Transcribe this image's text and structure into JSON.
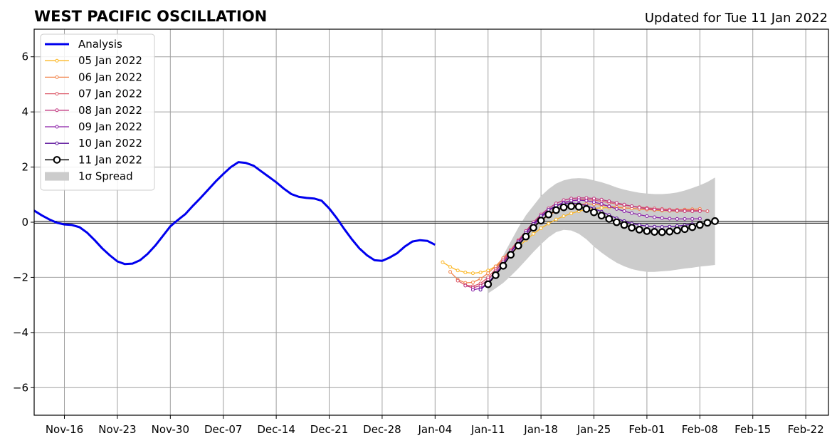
{
  "title": "WEST PACIFIC OSCILLATION",
  "updated": "Updated for Tue 11 Jan 2022",
  "chart_data": {
    "type": "line",
    "x_start_date": "2021-11-12",
    "xlim_days": [
      0,
      105
    ],
    "ylim": [
      -7,
      7
    ],
    "grid": true,
    "legend_placement": "top-left",
    "y_ticks": [
      -6,
      -4,
      -2,
      0,
      2,
      4,
      6
    ],
    "y_tick_labels": [
      "−6",
      "−4",
      "−2",
      "0",
      "2",
      "4",
      "6"
    ],
    "x_ticks": [
      {
        "label": "Nov-16",
        "day": 4
      },
      {
        "label": "Nov-23",
        "day": 11
      },
      {
        "label": "Nov-30",
        "day": 18
      },
      {
        "label": "Dec-07",
        "day": 25
      },
      {
        "label": "Dec-14",
        "day": 32
      },
      {
        "label": "Dec-21",
        "day": 39
      },
      {
        "label": "Dec-28",
        "day": 46
      },
      {
        "label": "Jan-04",
        "day": 53
      },
      {
        "label": "Jan-11",
        "day": 60
      },
      {
        "label": "Jan-18",
        "day": 67
      },
      {
        "label": "Jan-25",
        "day": 74
      },
      {
        "label": "Feb-01",
        "day": 81
      },
      {
        "label": "Feb-08",
        "day": 88
      },
      {
        "label": "Feb-15",
        "day": 95
      },
      {
        "label": "Feb-22",
        "day": 102
      }
    ],
    "analysis": {
      "name": "Analysis",
      "color": "#0000ee",
      "start_day": 0,
      "values": [
        0.42,
        0.25,
        0.1,
        -0.02,
        -0.08,
        -0.1,
        -0.18,
        -0.38,
        -0.65,
        -0.95,
        -1.2,
        -1.42,
        -1.52,
        -1.5,
        -1.38,
        -1.15,
        -0.85,
        -0.5,
        -0.15,
        0.08,
        0.3,
        0.6,
        0.88,
        1.18,
        1.48,
        1.75,
        2.0,
        2.18,
        2.15,
        2.05,
        1.85,
        1.65,
        1.45,
        1.22,
        1.02,
        0.92,
        0.88,
        0.86,
        0.78,
        0.5,
        0.15,
        -0.25,
        -0.62,
        -0.95,
        -1.2,
        -1.38,
        -1.4,
        -1.28,
        -1.12,
        -0.88,
        -0.7,
        -0.65,
        -0.68,
        -0.82
      ]
    },
    "forecasts": [
      {
        "name": "05 Jan 2022",
        "color": "#fcb724",
        "start_day": 54,
        "values": [
          -1.45,
          -1.62,
          -1.75,
          -1.82,
          -1.85,
          -1.82,
          -1.75,
          -1.6,
          -1.4,
          -1.15,
          -0.9,
          -0.65,
          -0.42,
          -0.22,
          -0.05,
          0.1,
          0.22,
          0.32,
          0.4,
          0.46,
          0.5,
          0.52,
          0.53,
          0.53,
          0.52,
          0.5,
          0.48,
          0.46,
          0.44,
          0.42,
          0.41,
          0.4,
          0.4,
          0.4,
          0.41
        ]
      },
      {
        "name": "06 Jan 2022",
        "color": "#f2854b",
        "start_day": 55,
        "values": [
          -1.8,
          -2.08,
          -2.2,
          -2.18,
          -2.05,
          -1.85,
          -1.6,
          -1.3,
          -1.0,
          -0.7,
          -0.42,
          -0.18,
          0.05,
          0.25,
          0.4,
          0.52,
          0.6,
          0.65,
          0.66,
          0.65,
          0.62,
          0.58,
          0.55,
          0.52,
          0.5,
          0.48,
          0.46,
          0.45,
          0.44,
          0.44,
          0.45,
          0.46,
          0.47,
          0.48
        ]
      },
      {
        "name": "07 Jan 2022",
        "color": "#dc5b6a",
        "start_day": 56,
        "values": [
          -2.12,
          -2.28,
          -2.32,
          -2.22,
          -2.0,
          -1.7,
          -1.35,
          -1.0,
          -0.65,
          -0.32,
          -0.02,
          0.22,
          0.42,
          0.58,
          0.7,
          0.78,
          0.82,
          0.82,
          0.8,
          0.76,
          0.71,
          0.66,
          0.62,
          0.58,
          0.55,
          0.52,
          0.5,
          0.48,
          0.46,
          0.45,
          0.44,
          0.43,
          0.42,
          0.4
        ]
      },
      {
        "name": "08 Jan 2022",
        "color": "#c1367f",
        "start_day": 57,
        "values": [
          -2.3,
          -2.38,
          -2.3,
          -2.08,
          -1.78,
          -1.42,
          -1.05,
          -0.68,
          -0.32,
          0.0,
          0.28,
          0.5,
          0.68,
          0.8,
          0.86,
          0.88,
          0.88,
          0.86,
          0.82,
          0.76,
          0.7,
          0.64,
          0.58,
          0.53,
          0.49,
          0.46,
          0.44,
          0.42,
          0.41,
          0.4,
          0.4,
          0.4
        ]
      },
      {
        "name": "09 Jan 2022",
        "color": "#8a1ea8",
        "start_day": 58,
        "values": [
          -2.45,
          -2.4,
          -2.2,
          -1.9,
          -1.55,
          -1.18,
          -0.8,
          -0.45,
          -0.12,
          0.18,
          0.42,
          0.6,
          0.72,
          0.78,
          0.8,
          0.78,
          0.73,
          0.66,
          0.57,
          0.48,
          0.4,
          0.33,
          0.27,
          0.22,
          0.18,
          0.15,
          0.13,
          0.12,
          0.12,
          0.12,
          0.13
        ]
      },
      {
        "name": "10 Jan 2022",
        "color": "#5a0f9a",
        "start_day": 59,
        "values": [
          -2.45,
          -2.2,
          -1.88,
          -1.5,
          -1.1,
          -0.72,
          -0.38,
          -0.06,
          0.22,
          0.45,
          0.6,
          0.68,
          0.7,
          0.67,
          0.6,
          0.5,
          0.38,
          0.26,
          0.14,
          0.04,
          -0.05,
          -0.1,
          -0.14,
          -0.16,
          -0.17,
          -0.16,
          -0.14,
          -0.11,
          -0.07
        ]
      }
    ],
    "current": {
      "name": "11 Jan 2022",
      "color": "#000000",
      "start_day": 60,
      "values": [
        -2.25,
        -1.92,
        -1.58,
        -1.18,
        -0.85,
        -0.52,
        -0.2,
        0.06,
        0.28,
        0.44,
        0.54,
        0.58,
        0.56,
        0.48,
        0.36,
        0.24,
        0.12,
        0.0,
        -0.1,
        -0.2,
        -0.27,
        -0.32,
        -0.35,
        -0.36,
        -0.34,
        -0.3,
        -0.25,
        -0.18,
        -0.1,
        -0.02,
        0.04
      ]
    },
    "spread": {
      "name": "1σ Spread",
      "color": "#cccccc",
      "start_day": 60,
      "upper": [
        -2.2,
        -1.7,
        -1.2,
        -0.7,
        -0.2,
        0.25,
        0.6,
        0.95,
        1.2,
        1.4,
        1.52,
        1.58,
        1.6,
        1.58,
        1.52,
        1.45,
        1.36,
        1.26,
        1.18,
        1.12,
        1.07,
        1.04,
        1.02,
        1.02,
        1.04,
        1.08,
        1.15,
        1.24,
        1.34,
        1.46,
        1.62
      ],
      "lower": [
        -2.58,
        -2.4,
        -2.2,
        -1.95,
        -1.68,
        -1.38,
        -1.08,
        -0.8,
        -0.55,
        -0.36,
        -0.28,
        -0.3,
        -0.42,
        -0.62,
        -0.88,
        -1.1,
        -1.3,
        -1.47,
        -1.6,
        -1.7,
        -1.76,
        -1.8,
        -1.8,
        -1.78,
        -1.76,
        -1.72,
        -1.68,
        -1.65,
        -1.61,
        -1.58,
        -1.55
      ]
    }
  }
}
